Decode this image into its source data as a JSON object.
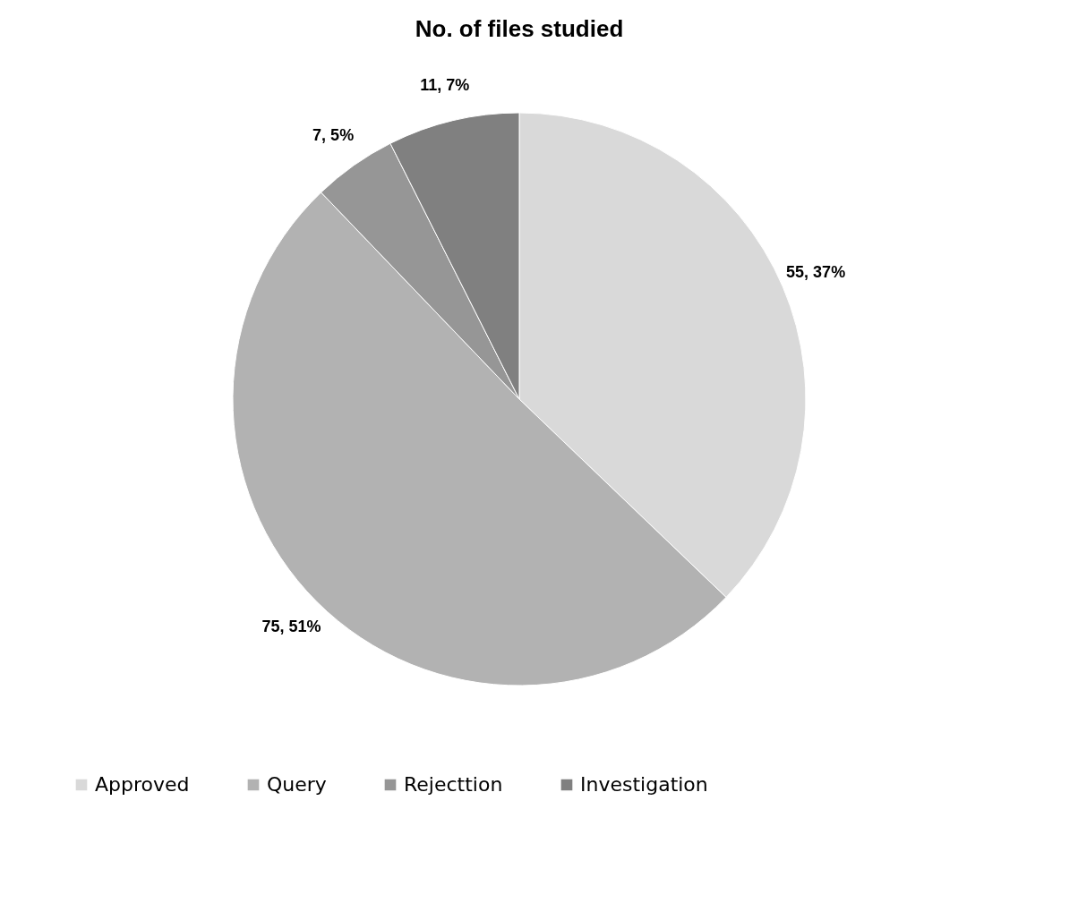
{
  "chart_data": {
    "type": "pie",
    "title": "No. of files studied",
    "categories": [
      "Approved",
      "Query",
      "Rejecttion",
      "Investigation"
    ],
    "values": [
      55,
      75,
      7,
      11
    ],
    "colors": [
      "#d9d9d9",
      "#b2b2b2",
      "#969696",
      "#808080"
    ],
    "value_labels": [
      "55, 37%",
      "75, 51%",
      "7, 5%",
      "11, 7%"
    ],
    "legend": "bottom"
  }
}
